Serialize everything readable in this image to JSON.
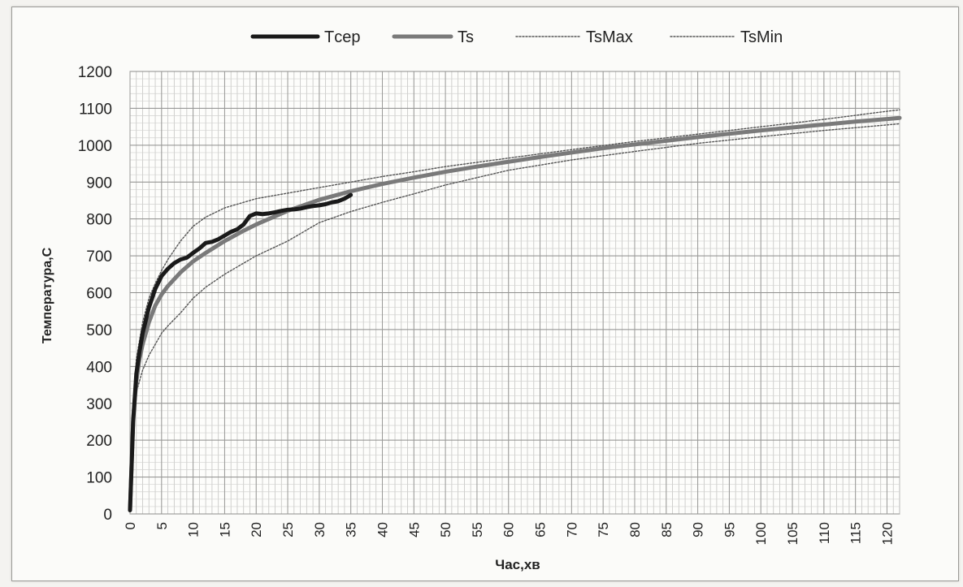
{
  "chart_data": {
    "type": "line",
    "xlabel": "Час,хв",
    "ylabel": "Температура,С",
    "xlim": [
      0,
      122
    ],
    "ylim": [
      0,
      1200
    ],
    "x_ticks": [
      "0",
      "5",
      "10",
      "15",
      "20",
      "25",
      "30",
      "35",
      "40",
      "45",
      "50",
      "55",
      "60",
      "65",
      "70",
      "75",
      "80",
      "85",
      "90",
      "95",
      "100",
      "105",
      "110",
      "115",
      "120"
    ],
    "y_ticks": [
      "0",
      "100",
      "200",
      "300",
      "400",
      "500",
      "600",
      "700",
      "800",
      "900",
      "1000",
      "1100",
      "1200"
    ],
    "grid": true,
    "legend_position": "top",
    "series": [
      {
        "name": "Tсер",
        "color": "#1a1a1a",
        "style": "thick-solid",
        "x": [
          0,
          0.5,
          1,
          1.5,
          2,
          3,
          4,
          5,
          6,
          7,
          8,
          9,
          10,
          11,
          12,
          13,
          14,
          15,
          16,
          17,
          18,
          19,
          20,
          21,
          22,
          23,
          24,
          25,
          26,
          27,
          28,
          29,
          30,
          31,
          32,
          33,
          34,
          35
        ],
        "y": [
          10,
          250,
          380,
          440,
          490,
          560,
          610,
          645,
          665,
          680,
          690,
          695,
          708,
          720,
          735,
          738,
          745,
          755,
          765,
          772,
          785,
          808,
          815,
          813,
          815,
          818,
          822,
          825,
          826,
          828,
          832,
          835,
          837,
          840,
          845,
          848,
          855,
          865
        ]
      },
      {
        "name": "Ts",
        "color": "#7a7a7a",
        "style": "thick-solid",
        "x": [
          0,
          0.5,
          1,
          1.5,
          2,
          3,
          4,
          5,
          6,
          8,
          10,
          12,
          15,
          18,
          20,
          25,
          30,
          35,
          40,
          45,
          50,
          55,
          60,
          65,
          70,
          75,
          80,
          85,
          90,
          95,
          100,
          105,
          110,
          115,
          120,
          122
        ],
        "y": [
          10,
          260,
          360,
          420,
          460,
          520,
          565,
          595,
          618,
          655,
          685,
          708,
          740,
          768,
          785,
          822,
          852,
          875,
          895,
          912,
          928,
          942,
          955,
          968,
          980,
          992,
          1002,
          1012,
          1022,
          1031,
          1040,
          1048,
          1056,
          1064,
          1071,
          1074
        ]
      },
      {
        "name": "TsMax",
        "color": "#555555",
        "style": "dotted",
        "x": [
          0,
          0.5,
          1,
          2,
          3,
          4,
          5,
          6,
          8,
          10,
          12,
          15,
          18,
          20,
          25,
          30,
          35,
          40,
          45,
          50,
          60,
          70,
          80,
          90,
          100,
          110,
          120,
          122
        ],
        "y": [
          10,
          300,
          420,
          520,
          585,
          625,
          660,
          690,
          740,
          780,
          805,
          830,
          845,
          855,
          870,
          885,
          900,
          915,
          928,
          942,
          965,
          988,
          1010,
          1030,
          1050,
          1070,
          1092,
          1096
        ]
      },
      {
        "name": "TsMin",
        "color": "#555555",
        "style": "dotted",
        "x": [
          0,
          0.5,
          1,
          2,
          3,
          4,
          5,
          6,
          8,
          10,
          12,
          15,
          18,
          20,
          25,
          30,
          35,
          40,
          45,
          50,
          60,
          70,
          80,
          90,
          100,
          110,
          120,
          122
        ],
        "y": [
          10,
          220,
          330,
          390,
          430,
          460,
          490,
          510,
          545,
          585,
          615,
          650,
          680,
          700,
          740,
          790,
          820,
          845,
          868,
          892,
          932,
          960,
          983,
          1005,
          1023,
          1040,
          1055,
          1058
        ]
      }
    ]
  }
}
